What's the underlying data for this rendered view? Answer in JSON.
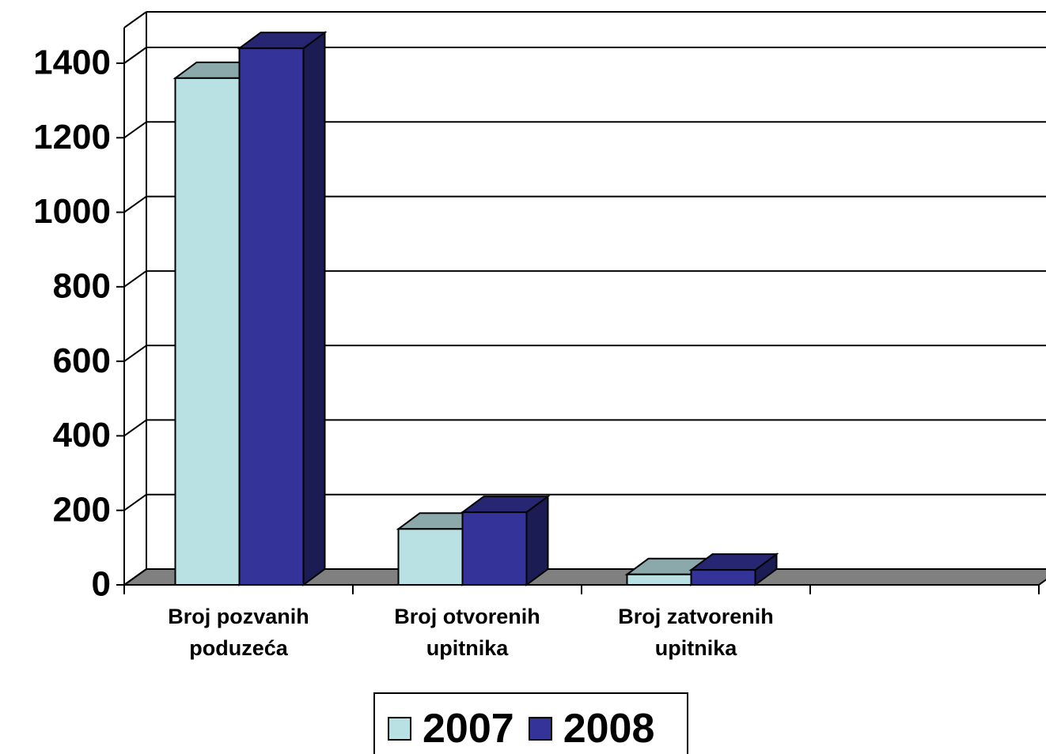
{
  "chart_data": {
    "type": "bar3d",
    "categories": [
      "Broj pozvanih poduzeća",
      "Broj otvorenih upitnika",
      "Broj zatvorenih upitnika",
      null
    ],
    "series": [
      {
        "name": "2007",
        "color": "#b9e1e4",
        "values": [
          1360,
          150,
          28,
          null
        ]
      },
      {
        "name": "2008",
        "color": "#333399",
        "values": [
          1440,
          195,
          40,
          null
        ]
      }
    ],
    "ylim": [
      0,
      1400
    ],
    "yticks": [
      0,
      200,
      400,
      600,
      800,
      1000,
      1200,
      1400
    ],
    "grid": true,
    "legend": "bottom"
  }
}
